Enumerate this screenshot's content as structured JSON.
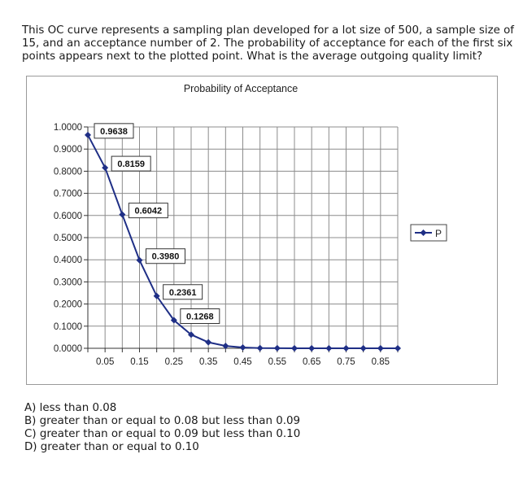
{
  "question": {
    "lines": [
      "This OC curve represents a sampling plan developed for a lot size of 500, a sample size of",
      "15, and an acceptance number of 2. The probability of acceptance for each of the first six",
      "points appears next to the plotted point. What is the average outgoing quality limit?"
    ]
  },
  "chart_data": {
    "type": "line",
    "title": "Probability of Acceptance",
    "xlabel": "",
    "ylabel": "",
    "x_tick_labels": [
      "0.05",
      "0.15",
      "0.25",
      "0.35",
      "0.45",
      "0.55",
      "0.65",
      "0.75",
      "0.85"
    ],
    "y_tick_labels": [
      "0.0000",
      "0.1000",
      "0.2000",
      "0.3000",
      "0.4000",
      "0.5000",
      "0.6000",
      "0.7000",
      "0.8000",
      "0.9000",
      "1.0000"
    ],
    "ylim": [
      0,
      1
    ],
    "grid": true,
    "legend_position": "right",
    "series": [
      {
        "name": "P",
        "color": "#1f2f86",
        "x": [
          0.0,
          0.05,
          0.1,
          0.15,
          0.2,
          0.25,
          0.3,
          0.35,
          0.4,
          0.45,
          0.5,
          0.55,
          0.6,
          0.65,
          0.7,
          0.75,
          0.8,
          0.85,
          0.9
        ],
        "values": [
          0.9638,
          0.8159,
          0.6042,
          0.398,
          0.2361,
          0.1268,
          0.0617,
          0.0271,
          0.0107,
          0.0037,
          0.0011,
          0.0003,
          0.0001,
          0.0,
          0.0,
          0.0,
          0.0,
          0.0,
          0.0
        ]
      }
    ],
    "data_labels": [
      "0.9638",
      "0.8159",
      "0.6042",
      "0.3980",
      "0.2361",
      "0.1268"
    ]
  },
  "answers": [
    "A) less than 0.08",
    "B) greater than or equal to 0.08 but less than 0.09",
    "C) greater than or equal to 0.09 but less than 0.10",
    "D) greater than or equal to 0.10"
  ]
}
